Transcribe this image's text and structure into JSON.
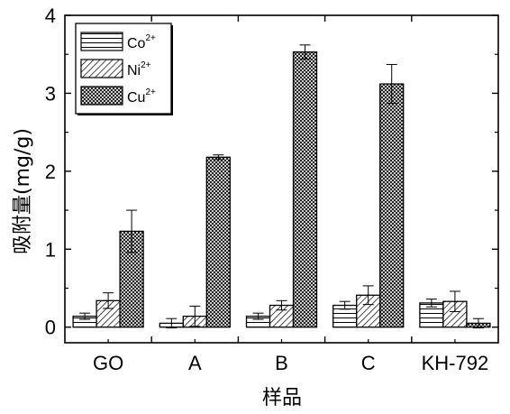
{
  "chart_data": {
    "type": "bar",
    "title": "",
    "xlabel": "样品",
    "ylabel": "吸附量(mg/g)",
    "categories": [
      "GO",
      "A",
      "B",
      "C",
      "KH-792"
    ],
    "ylim": [
      -0.2,
      4
    ],
    "yticks": [
      0,
      1,
      2,
      3,
      4
    ],
    "grid": false,
    "legend_position": "top-left",
    "series": [
      {
        "name": "Co",
        "sup": "2+",
        "pattern": "horizontal-lines",
        "values": [
          0.14,
          0.05,
          0.14,
          0.28,
          0.31
        ],
        "errors": [
          0.04,
          0.06,
          0.04,
          0.05,
          0.05
        ]
      },
      {
        "name": "Ni",
        "sup": "2+",
        "pattern": "diagonal-lines",
        "values": [
          0.34,
          0.14,
          0.28,
          0.41,
          0.33
        ],
        "errors": [
          0.1,
          0.13,
          0.06,
          0.12,
          0.13
        ]
      },
      {
        "name": "Cu",
        "sup": "2+",
        "pattern": "crosshatch",
        "values": [
          1.23,
          2.18,
          3.53,
          3.12,
          0.05
        ],
        "errors": [
          0.27,
          0.03,
          0.09,
          0.25,
          0.06
        ]
      }
    ],
    "colors": {
      "line": "#000000",
      "fill": "#ffffff"
    }
  }
}
